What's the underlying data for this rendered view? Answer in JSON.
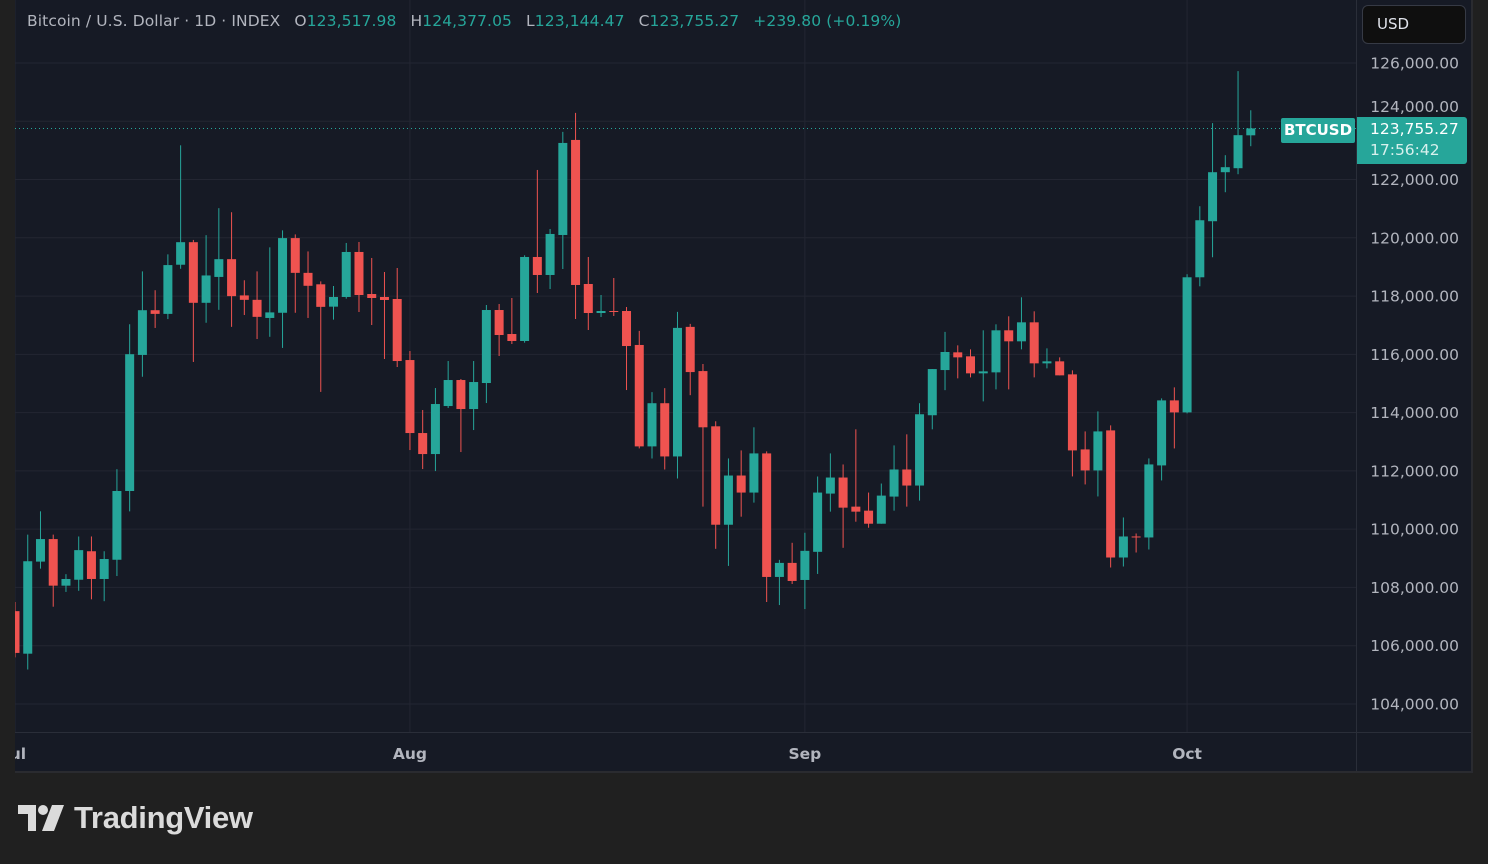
{
  "header": {
    "symbol_desc": "Bitcoin / U.S. Dollar · 1D · INDEX",
    "o_label": "O",
    "o_value": "123,517.98",
    "h_label": "H",
    "h_value": "124,377.05",
    "l_label": "L",
    "l_value": "123,144.47",
    "c_label": "C",
    "c_value": "123,755.27",
    "change": "+239.80 (+0.19%)"
  },
  "currency_button": "USD",
  "last_price_tag": {
    "symbol": "BTCUSD",
    "price": "123,755.27",
    "countdown": "17:56:42"
  },
  "brand": {
    "name": "TradingView",
    "logo_icon": "tradingview-logo-icon"
  },
  "colors": {
    "up": "#26a69a",
    "down": "#ef5350",
    "background": "#161a25",
    "grid": "#232632",
    "axis_text": "#b2b5be"
  },
  "chart_data": {
    "type": "candlestick",
    "title": "Bitcoin / U.S. Dollar · 1D · INDEX",
    "interval": "1D",
    "first_candle": "Jul 1",
    "ylim": [
      103200,
      128200
    ],
    "y_ticks": [
      104000,
      106000,
      108000,
      110000,
      112000,
      114000,
      116000,
      118000,
      120000,
      122000,
      124000,
      126000
    ],
    "y_tick_labels": [
      "104,000.00",
      "106,000.00",
      "108,000.00",
      "110,000.00",
      "112,000.00",
      "114,000.00",
      "116,000.00",
      "118,000.00",
      "120,000.00",
      "122,000.00",
      "124,000.00",
      "126,000.00"
    ],
    "x_ticks": [
      {
        "label": "Jul",
        "day_index": 0
      },
      {
        "label": "Aug",
        "day_index": 31
      },
      {
        "label": "Sep",
        "day_index": 62
      },
      {
        "label": "Oct",
        "day_index": 92
      }
    ],
    "last_price": 123755.27,
    "grid": true,
    "ohlc_fields": [
      "open",
      "high",
      "low",
      "close"
    ],
    "candles": [
      [
        107186,
        107500,
        105600,
        105752
      ],
      [
        105726,
        109813,
        105181,
        108899
      ],
      [
        108886,
        110612,
        108645,
        109660
      ],
      [
        109660,
        109813,
        107338,
        108061
      ],
      [
        108061,
        108455,
        107846,
        108290
      ],
      [
        108264,
        109749,
        107884,
        109280
      ],
      [
        109242,
        109749,
        107592,
        108290
      ],
      [
        108290,
        109242,
        107528,
        108975
      ],
      [
        108950,
        112059,
        108391,
        111310
      ],
      [
        111310,
        117033,
        110612,
        116005
      ],
      [
        115980,
        118848,
        115231,
        117515
      ],
      [
        117515,
        118201,
        116906,
        117389
      ],
      [
        117389,
        119432,
        117211,
        119064
      ],
      [
        119076,
        123175,
        118937,
        119850
      ],
      [
        119850,
        119927,
        115739,
        117769
      ],
      [
        117769,
        120091,
        117084,
        118708
      ],
      [
        118657,
        121018,
        117528,
        119267
      ],
      [
        119267,
        120878,
        116944,
        117998
      ],
      [
        118023,
        118543,
        117350,
        117871
      ],
      [
        117871,
        118848,
        116526,
        117287
      ],
      [
        117249,
        119673,
        116602,
        117440
      ],
      [
        117427,
        120256,
        116221,
        119990
      ],
      [
        119990,
        120117,
        117427,
        118797
      ],
      [
        118797,
        119533,
        117249,
        118353
      ],
      [
        118404,
        118505,
        114711,
        117630
      ],
      [
        117637,
        118346,
        117190,
        117969
      ],
      [
        117969,
        119823,
        117911,
        119514
      ],
      [
        119514,
        119857,
        117453,
        118037
      ],
      [
        118071,
        119308,
        117007,
        117934
      ],
      [
        117969,
        118827,
        115840,
        117866
      ],
      [
        117900,
        118964,
        115565,
        115771
      ],
      [
        115805,
        116114,
        112715,
        113299
      ],
      [
        113299,
        114089,
        112063,
        112578
      ],
      [
        112578,
        114844,
        111994,
        114295
      ],
      [
        114226,
        115771,
        114157,
        115119
      ],
      [
        115119,
        115153,
        112647,
        114123
      ],
      [
        114123,
        115771,
        113402,
        115050
      ],
      [
        115016,
        117694,
        114329,
        117522
      ],
      [
        117522,
        117728,
        115943,
        116664
      ],
      [
        116698,
        117934,
        116355,
        116458
      ],
      [
        116458,
        119400,
        116400,
        119342
      ],
      [
        119342,
        122329,
        118106,
        118724
      ],
      [
        118724,
        120303,
        118243,
        120132
      ],
      [
        120097,
        123634,
        118930,
        123256
      ],
      [
        123359,
        124286,
        117213,
        118381
      ],
      [
        118415,
        119342,
        116836,
        117419
      ],
      [
        117419,
        118037,
        117282,
        117488
      ],
      [
        117488,
        118621,
        117316,
        117454
      ],
      [
        117488,
        117625,
        114775,
        116286
      ],
      [
        116322,
        116805,
        112772,
        112841
      ],
      [
        112841,
        114702,
        112427,
        114323
      ],
      [
        114323,
        114840,
        112048,
        112496
      ],
      [
        112496,
        117460,
        111738,
        116908
      ],
      [
        116943,
        117046,
        114599,
        115392
      ],
      [
        115426,
        115667,
        110773,
        113496
      ],
      [
        113530,
        113703,
        109325,
        110152
      ],
      [
        110152,
        112427,
        108739,
        111841
      ],
      [
        111841,
        112703,
        110428,
        111256
      ],
      [
        111256,
        113496,
        110911,
        112600
      ],
      [
        112600,
        112669,
        107498,
        108360
      ],
      [
        108360,
        108946,
        107395,
        108842
      ],
      [
        108842,
        109532,
        108119,
        108222
      ],
      [
        108256,
        109877,
        107257,
        109256
      ],
      [
        109222,
        111807,
        108463,
        111256
      ],
      [
        111221,
        112600,
        110601,
        111772
      ],
      [
        111772,
        112221,
        109360,
        110738
      ],
      [
        110773,
        113427,
        110256,
        110601
      ],
      [
        110635,
        111256,
        110049,
        110187
      ],
      [
        110187,
        111566,
        110187,
        111152
      ],
      [
        111118,
        112875,
        110635,
        112048
      ],
      [
        112048,
        113255,
        110773,
        111497
      ],
      [
        111497,
        114323,
        110980,
        113944
      ],
      [
        113910,
        115495,
        113427,
        115495
      ],
      [
        115461,
        116771,
        114771,
        116081
      ],
      [
        116069,
        116309,
        115176,
        115897
      ],
      [
        115932,
        116172,
        115210,
        115348
      ],
      [
        115348,
        116825,
        114386,
        115416
      ],
      [
        115382,
        117031,
        114798,
        116825
      ],
      [
        116825,
        117306,
        114798,
        116447
      ],
      [
        116447,
        117958,
        116172,
        117099
      ],
      [
        117099,
        117477,
        115210,
        115691
      ],
      [
        115691,
        116206,
        115519,
        115760
      ],
      [
        115760,
        115897,
        115279,
        115279
      ],
      [
        115313,
        115451,
        111810,
        112703
      ],
      [
        112737,
        113355,
        111535,
        112016
      ],
      [
        112016,
        114042,
        111123,
        113355
      ],
      [
        113390,
        113561,
        108684,
        109027
      ],
      [
        109027,
        110401,
        108718,
        109749
      ],
      [
        109749,
        109852,
        109199,
        109715
      ],
      [
        109715,
        112428,
        109302,
        112222
      ],
      [
        112188,
        114489,
        111672,
        114420
      ],
      [
        114420,
        114867,
        112771,
        114008
      ],
      [
        114008,
        118748,
        113974,
        118645
      ],
      [
        118645,
        121084,
        118336,
        120603
      ],
      [
        120569,
        123935,
        119332,
        122252
      ],
      [
        122252,
        122836,
        121565,
        122424
      ],
      [
        122389,
        125721,
        122183,
        123523
      ],
      [
        123517.98,
        124377.05,
        123144.47,
        123755.27
      ]
    ]
  }
}
